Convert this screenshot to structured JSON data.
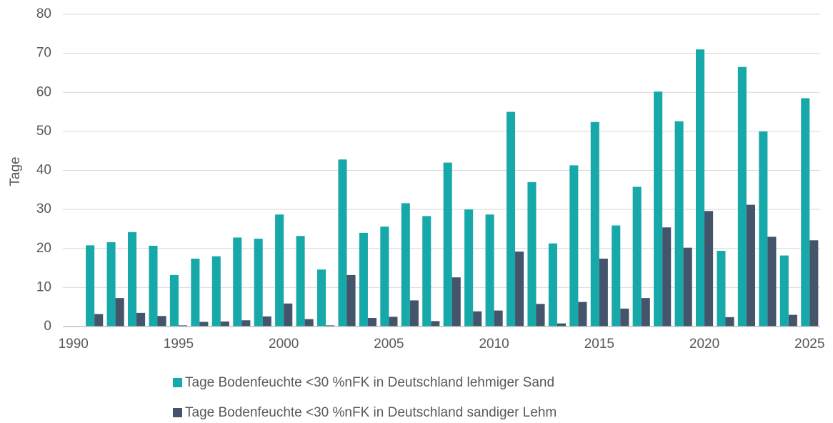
{
  "chart_data": {
    "type": "bar",
    "y_label": "Tage",
    "x": [
      1991,
      1992,
      1993,
      1994,
      1995,
      1996,
      1997,
      1998,
      1999,
      2000,
      2001,
      2002,
      2003,
      2004,
      2005,
      2006,
      2007,
      2008,
      2009,
      2010,
      2011,
      2012,
      2013,
      2014,
      2015,
      2016,
      2017,
      2018,
      2019,
      2020,
      2021,
      2022,
      2023,
      2024,
      2025
    ],
    "series": [
      {
        "name": "Tage Bodenfeuchte <30 %nFK in Deutschland lehmiger Sand",
        "color": "#17a9aa",
        "values": [
          20.8,
          21.6,
          24.2,
          20.7,
          13.2,
          17.4,
          18,
          22.8,
          22.5,
          28.7,
          23.2,
          14.6,
          42.8,
          24,
          25.6,
          31.6,
          28.3,
          42,
          30,
          28.7,
          55,
          37,
          21.3,
          41.3,
          52.4,
          25.9,
          35.8,
          60.2,
          52.6,
          71,
          19.4,
          66.5,
          50,
          18.2,
          58.5
        ]
      },
      {
        "name": "Tage Bodenfeuchte <30 %nFK in Deutschland sandiger Lehm",
        "color": "#44546a",
        "values": [
          3.2,
          7.3,
          3.5,
          2.7,
          0.3,
          1.2,
          1.3,
          1.6,
          2.6,
          5.9,
          1.9,
          0.3,
          13.2,
          2.2,
          2.5,
          6.7,
          1.4,
          12.6,
          3.9,
          4.1,
          19.2,
          5.8,
          0.8,
          6.3,
          17.4,
          4.6,
          7.3,
          25.4,
          20.2,
          29.6,
          2.4,
          31.2,
          23,
          3,
          22.1
        ]
      }
    ],
    "xlim": [
      1989.5,
      2025.5
    ],
    "xticks": [
      1990,
      1995,
      2000,
      2005,
      2010,
      2015,
      2020,
      2025
    ],
    "ylim": [
      0,
      80
    ],
    "yticks": [
      0,
      10,
      20,
      30,
      40,
      50,
      60,
      70,
      80
    ],
    "grid": true,
    "legend": "bottom"
  }
}
